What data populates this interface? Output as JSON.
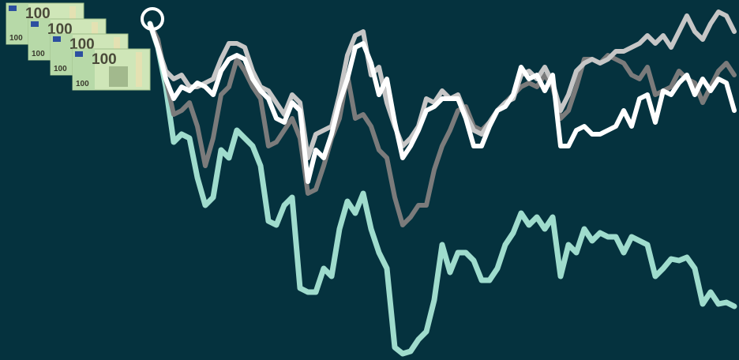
{
  "chart_data": {
    "type": "line",
    "ylim": [
      0,
      456
    ],
    "start_marker": true,
    "series": [
      {
        "color": "#9fdccd",
        "values": [
          426,
          396,
          346,
          276,
          286,
          281,
          231,
          196,
          206,
          266,
          256,
          291,
          281,
          271,
          246,
          176,
          171,
          196,
          206,
          91,
          86,
          86,
          116,
          106,
          166,
          201,
          186,
          211,
          166,
          136,
          116,
          16,
          8,
          11,
          26,
          36,
          76,
          146,
          111,
          136,
          136,
          126,
          101,
          101,
          116,
          146,
          161,
          186,
          171,
          181,
          166,
          181,
          106,
          146,
          136,
          166,
          151,
          161,
          156,
          156,
          136,
          156,
          151,
          146,
          106,
          116,
          128,
          126,
          130,
          116,
          71,
          86,
          71,
          73,
          68
        ]
      },
      {
        "color": "#7b7b7b",
        "values": [
          426,
          406,
          356,
          311,
          316,
          326,
          296,
          246,
          281,
          336,
          346,
          381,
          366,
          346,
          331,
          271,
          276,
          291,
          306,
          281,
          211,
          216,
          246,
          281,
          306,
          361,
          306,
          311,
          296,
          266,
          256,
          206,
          171,
          181,
          196,
          196,
          241,
          271,
          291,
          316,
          321,
          296,
          291,
          301,
          316,
          326,
          336,
          346,
          351,
          346,
          361,
          346,
          306,
          316,
          346,
          381,
          381,
          376,
          386,
          381,
          376,
          361,
          356,
          371,
          336,
          341,
          346,
          366,
          356,
          351,
          326,
          346,
          366,
          376,
          361
        ]
      },
      {
        "color": "#c6c6c6",
        "values": [
          426,
          396,
          366,
          356,
          361,
          346,
          346,
          351,
          356,
          381,
          401,
          401,
          396,
          366,
          346,
          341,
          326,
          311,
          336,
          326,
          256,
          286,
          291,
          296,
          336,
          386,
          411,
          416,
          361,
          371,
          326,
          296,
          271,
          281,
          296,
          331,
          326,
          341,
          331,
          336,
          311,
          291,
          286,
          301,
          316,
          326,
          331,
          361,
          366,
          356,
          371,
          351,
          316,
          336,
          366,
          376,
          381,
          376,
          381,
          391,
          391,
          396,
          401,
          411,
          401,
          411,
          396,
          416,
          436,
          416,
          406,
          426,
          441,
          436,
          416
        ]
      },
      {
        "color": "#ffffff",
        "values": [
          426,
          396,
          356,
          331,
          346,
          341,
          351,
          346,
          336,
          366,
          381,
          386,
          381,
          356,
          341,
          331,
          306,
          301,
          326,
          316,
          226,
          266,
          256,
          286,
          326,
          356,
          396,
          401,
          376,
          336,
          356,
          301,
          256,
          271,
          291,
          316,
          321,
          331,
          331,
          331,
          306,
          271,
          271,
          296,
          316,
          321,
          336,
          371,
          356,
          361,
          341,
          361,
          271,
          271,
          291,
          296,
          286,
          286,
          291,
          296,
          316,
          296,
          331,
          336,
          301,
          341,
          336,
          351,
          361,
          336,
          356,
          341,
          356,
          351,
          316
        ]
      }
    ]
  },
  "banknote_label": "100"
}
